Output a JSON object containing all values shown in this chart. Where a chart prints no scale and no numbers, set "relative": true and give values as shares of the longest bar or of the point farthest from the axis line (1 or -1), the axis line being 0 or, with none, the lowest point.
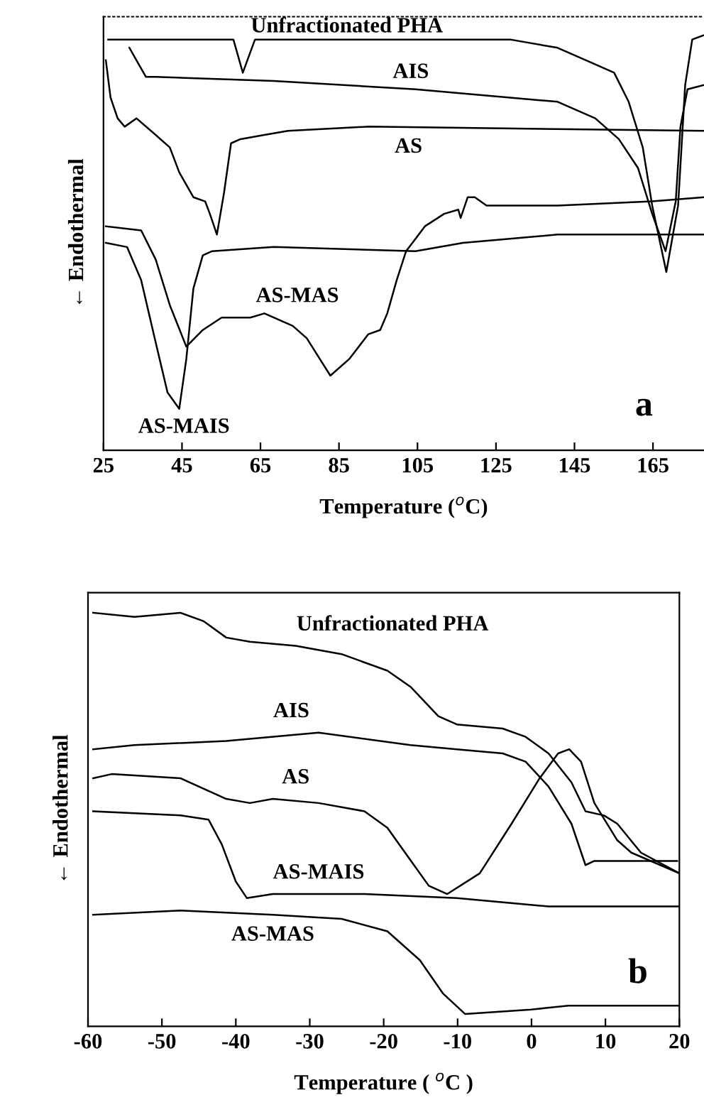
{
  "chart_data": [
    {
      "type": "line",
      "relative": true,
      "xlabel": "Temperature ($^{o}$C)",
      "ylabel": "← Endothermal",
      "xlim": [
        25,
        178
      ],
      "xticks": [
        25,
        45,
        65,
        85,
        105,
        125,
        145,
        165
      ],
      "grid": false,
      "legend": false,
      "marker": "none",
      "line_style": "solid",
      "tick_labels": "x",
      "annotations": [
        "a"
      ],
      "series": [
        {
          "name": "Unfractionated PHA",
          "color": "#000000",
          "x": [
            26.2,
            58.1,
            60.5,
            63.6,
            128.6,
            140.7,
            150.3,
            155.1,
            158.8,
            162.4,
            164.8,
            168.4,
            171.4,
            173.2,
            175.0,
            177.8
          ],
          "values": [
            0.99,
            0.99,
            0.91,
            0.99,
            0.99,
            0.97,
            0.93,
            0.91,
            0.84,
            0.73,
            0.59,
            0.43,
            0.59,
            0.88,
            0.99,
            1.0
          ]
        },
        {
          "name": "AIS",
          "color": "#000000",
          "x": [
            31.6,
            33.4,
            35.8,
            38.3,
            68.4,
            104.5,
            128.6,
            140.7,
            150.3,
            156.3,
            161.2,
            164.8,
            168.2,
            170.8,
            172.0,
            173.8,
            177.8
          ],
          "values": [
            0.97,
            0.94,
            0.9,
            0.9,
            0.89,
            0.87,
            0.85,
            0.84,
            0.8,
            0.75,
            0.68,
            0.57,
            0.48,
            0.6,
            0.78,
            0.87,
            0.88
          ]
        },
        {
          "name": "AS",
          "color": "#000000",
          "x": [
            25.6,
            26.8,
            28.6,
            30.4,
            33.4,
            38.3,
            41.9,
            44.3,
            47.9,
            50.9,
            52.1,
            53.9,
            55.7,
            57.5,
            59.9,
            66.0,
            72.0,
            92.5,
            177.8
          ],
          "values": [
            0.94,
            0.85,
            0.8,
            0.78,
            0.8,
            0.76,
            0.73,
            0.67,
            0.61,
            0.6,
            0.57,
            0.52,
            0.62,
            0.74,
            0.75,
            0.76,
            0.77,
            0.78,
            0.77
          ]
        },
        {
          "name": "AS-MAS",
          "color": "#000000",
          "x": [
            25.6,
            34.6,
            38.3,
            41.9,
            46.1,
            50.3,
            55.1,
            62.4,
            66.0,
            73.2,
            76.8,
            82.8,
            87.6,
            92.5,
            95.5,
            97.3,
            99.7,
            102.1,
            106.9,
            111.8,
            115.4,
            116.0,
            117.8,
            119.6,
            122.6,
            140.7,
            164.8,
            177.8
          ],
          "values": [
            0.54,
            0.53,
            0.46,
            0.35,
            0.25,
            0.29,
            0.32,
            0.32,
            0.33,
            0.3,
            0.27,
            0.18,
            0.22,
            0.28,
            0.29,
            0.33,
            0.41,
            0.48,
            0.54,
            0.57,
            0.58,
            0.56,
            0.61,
            0.61,
            0.59,
            0.59,
            0.6,
            0.61
          ]
        },
        {
          "name": "AS-MAIS",
          "color": "#000000",
          "x": [
            25.6,
            31.0,
            34.6,
            38.3,
            41.3,
            44.3,
            46.1,
            47.9,
            50.3,
            52.7,
            68.4,
            104.5,
            116.6,
            140.7,
            177.8
          ],
          "values": [
            0.5,
            0.49,
            0.41,
            0.26,
            0.14,
            0.1,
            0.22,
            0.39,
            0.47,
            0.48,
            0.49,
            0.48,
            0.5,
            0.52,
            0.52
          ]
        }
      ]
    },
    {
      "type": "line",
      "relative": true,
      "xlabel": "Temperature ( $^{o}$C )",
      "ylabel": "← Endothermal",
      "xlim": [
        -60,
        20
      ],
      "xticks": [
        -60,
        -50,
        -40,
        -30,
        -20,
        -10,
        0,
        10,
        20
      ],
      "grid": false,
      "legend": false,
      "marker": "none",
      "line_style": "solid",
      "tick_labels": "x",
      "annotations": [
        "b"
      ],
      "series": [
        {
          "name": "Unfractionated PHA",
          "color": "#000000",
          "x": [
            -59.3,
            -53.7,
            -47.5,
            -44.4,
            -41.3,
            -38.1,
            -31.9,
            -25.7,
            -19.5,
            -16.3,
            -12.6,
            -10.1,
            -3.9,
            -0.8,
            2.3,
            5.4,
            7.3,
            9.8,
            11.6,
            14.8,
            20.0
          ],
          "values": [
            1.0,
            0.99,
            1.0,
            0.98,
            0.94,
            0.93,
            0.92,
            0.9,
            0.86,
            0.82,
            0.75,
            0.73,
            0.72,
            0.7,
            0.66,
            0.59,
            0.52,
            0.51,
            0.49,
            0.42,
            0.37
          ]
        },
        {
          "name": "AIS",
          "color": "#000000",
          "x": [
            -59.3,
            -53.7,
            -41.3,
            -28.8,
            -16.4,
            -10.1,
            -3.9,
            -0.8,
            2.3,
            5.4,
            7.3,
            8.5,
            11.6,
            19.7
          ],
          "values": [
            0.67,
            0.68,
            0.69,
            0.71,
            0.68,
            0.67,
            0.66,
            0.64,
            0.58,
            0.49,
            0.39,
            0.4,
            0.4,
            0.4
          ]
        },
        {
          "name": "AS",
          "color": "#000000",
          "x": [
            -59.3,
            -56.8,
            -47.5,
            -41.3,
            -38.1,
            -35.0,
            -28.8,
            -22.6,
            -19.5,
            -16.3,
            -13.9,
            -11.4,
            -7.0,
            -2.7,
            1.1,
            3.6,
            5.1,
            6.7,
            8.5,
            11.6,
            13.5,
            20.0
          ],
          "values": [
            0.6,
            0.61,
            0.6,
            0.55,
            0.54,
            0.55,
            0.54,
            0.52,
            0.48,
            0.4,
            0.34,
            0.32,
            0.37,
            0.49,
            0.6,
            0.66,
            0.67,
            0.64,
            0.54,
            0.45,
            0.42,
            0.37
          ]
        },
        {
          "name": "AS-MAIS",
          "color": "#000000",
          "x": [
            -59.3,
            -47.5,
            -43.7,
            -41.9,
            -40.0,
            -38.5,
            -35.0,
            -22.6,
            -10.1,
            2.3,
            20.0
          ],
          "values": [
            0.52,
            0.51,
            0.5,
            0.44,
            0.35,
            0.31,
            0.32,
            0.32,
            0.31,
            0.29,
            0.29
          ]
        },
        {
          "name": "AS-MAS",
          "color": "#000000",
          "x": [
            -59.3,
            -47.5,
            -35.0,
            -25.7,
            -19.5,
            -15.1,
            -12.0,
            -9.0,
            -0.4,
            5.0,
            20.0
          ],
          "values": [
            0.27,
            0.28,
            0.27,
            0.26,
            0.23,
            0.16,
            0.08,
            0.03,
            0.04,
            0.05,
            0.05
          ]
        }
      ]
    }
  ]
}
